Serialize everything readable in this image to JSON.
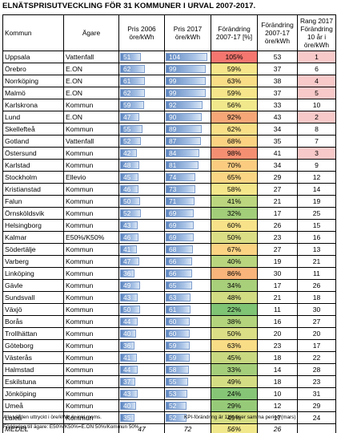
{
  "title": "ELNÄTSPRISUTVECKLING FÖR 31 KOMMUNER I URVAL 2007-2017.",
  "headers": {
    "kommun": "Kommun",
    "agare": "Ägare",
    "pris2006": "Pris 2006 öre/kWh",
    "pris2017": "Pris 2017 öre/kWh",
    "forandring_pct": "Förändring 2007-17 [%]",
    "forandring_ore": "Förändring 2007-17 öre/kWh",
    "rang": "Rang 2017 Förändring 10 år i öre/kWh"
  },
  "scale_max": 104,
  "rows": [
    {
      "kommun": "Uppsala",
      "agare": "Vattenfall",
      "p2006": 51,
      "p2017": 104,
      "pct": "105%",
      "ore": 53,
      "rank": 1,
      "pct_color": "#f4766f",
      "rank_color": "#f8c9c9"
    },
    {
      "kommun": "Örebro",
      "agare": "E.ON",
      "p2006": 62,
      "p2017": 99,
      "pct": "59%",
      "ore": 37,
      "rank": 6,
      "pct_color": "#f6e58a",
      "rank_color": "#ffffff"
    },
    {
      "kommun": "Norrköping",
      "agare": "E.ON",
      "p2006": 61,
      "p2017": 99,
      "pct": "63%",
      "ore": 38,
      "rank": 4,
      "pct_color": "#f9dc86",
      "rank_color": "#f8c9c9"
    },
    {
      "kommun": "Malmö",
      "agare": "E.ON",
      "p2006": 62,
      "p2017": 99,
      "pct": "59%",
      "ore": 37,
      "rank": 5,
      "pct_color": "#f6e58a",
      "rank_color": "#f8c9c9"
    },
    {
      "kommun": "Karlskrona",
      "agare": "Kommun",
      "p2006": 59,
      "p2017": 92,
      "pct": "56%",
      "ore": 33,
      "rank": 10,
      "pct_color": "#f1e88c",
      "rank_color": "#ffffff"
    },
    {
      "kommun": "Lund",
      "agare": "E.ON",
      "p2006": 47,
      "p2017": 90,
      "pct": "92%",
      "ore": 43,
      "rank": 2,
      "pct_color": "#f7a777",
      "rank_color": "#f8c9c9"
    },
    {
      "kommun": "Skellefteå",
      "agare": "Kommun",
      "p2006": 55,
      "p2017": 89,
      "pct": "62%",
      "ore": 34,
      "rank": 8,
      "pct_color": "#f8df88",
      "rank_color": "#ffffff"
    },
    {
      "kommun": "Gotland",
      "agare": "Vattenfall",
      "p2006": 52,
      "p2017": 87,
      "pct": "68%",
      "ore": 35,
      "rank": 7,
      "pct_color": "#fbd282",
      "rank_color": "#ffffff"
    },
    {
      "kommun": "Östersund",
      "agare": "Kommun",
      "p2006": 42,
      "p2017": 84,
      "pct": "98%",
      "ore": 41,
      "rank": 3,
      "pct_color": "#f58f72",
      "rank_color": "#f8c9c9"
    },
    {
      "kommun": "Karlstad",
      "agare": "Kommun",
      "p2006": 48,
      "p2017": 81,
      "pct": "70%",
      "ore": 34,
      "rank": 9,
      "pct_color": "#fbcc80",
      "rank_color": "#ffffff"
    },
    {
      "kommun": "Stockholm",
      "agare": "Ellevio",
      "p2006": 45,
      "p2017": 74,
      "pct": "65%",
      "ore": 29,
      "rank": 12,
      "pct_color": "#fad684",
      "rank_color": "#ffffff"
    },
    {
      "kommun": "Kristianstad",
      "agare": "Kommun",
      "p2006": 46,
      "p2017": 73,
      "pct": "58%",
      "ore": 27,
      "rank": 14,
      "pct_color": "#f4e68b",
      "rank_color": "#ffffff"
    },
    {
      "kommun": "Falun",
      "agare": "Kommun",
      "p2006": 50,
      "p2017": 71,
      "pct": "41%",
      "ore": 21,
      "rank": 19,
      "pct_color": "#bbd67e",
      "rank_color": "#ffffff"
    },
    {
      "kommun": "Örnsköldsvik",
      "agare": "Kommun",
      "p2006": 52,
      "p2017": 69,
      "pct": "32%",
      "ore": 17,
      "rank": 25,
      "pct_color": "#a2cd79",
      "rank_color": "#ffffff"
    },
    {
      "kommun": "Helsingborg",
      "agare": "Kommun",
      "p2006": 43,
      "p2017": 69,
      "pct": "60%",
      "ore": 26,
      "rank": 15,
      "pct_color": "#f7e289",
      "rank_color": "#ffffff"
    },
    {
      "kommun": "Kalmar",
      "agare": "E50%/K50%",
      "p2006": 46,
      "p2017": 69,
      "pct": "50%",
      "ore": 23,
      "rank": 16,
      "pct_color": "#dcde86",
      "rank_color": "#ffffff"
    },
    {
      "kommun": "Södertälje",
      "agare": "Kommun",
      "p2006": 41,
      "p2017": 68,
      "pct": "67%",
      "ore": 27,
      "rank": 13,
      "pct_color": "#fbd383",
      "rank_color": "#ffffff"
    },
    {
      "kommun": "Varberg",
      "agare": "Kommun",
      "p2006": 47,
      "p2017": 66,
      "pct": "40%",
      "ore": 19,
      "rank": 21,
      "pct_color": "#b9d57e",
      "rank_color": "#ffffff"
    },
    {
      "kommun": "Linköping",
      "agare": "Kommun",
      "p2006": 36,
      "p2017": 66,
      "pct": "86%",
      "ore": 30,
      "rank": 11,
      "pct_color": "#f8b47a",
      "rank_color": "#ffffff"
    },
    {
      "kommun": "Gävle",
      "agare": "Kommun",
      "p2006": 49,
      "p2017": 65,
      "pct": "34%",
      "ore": 17,
      "rank": 26,
      "pct_color": "#a8cf7a",
      "rank_color": "#ffffff"
    },
    {
      "kommun": "Sundsvall",
      "agare": "Kommun",
      "p2006": 43,
      "p2017": 63,
      "pct": "48%",
      "ore": 21,
      "rank": 18,
      "pct_color": "#d2dc83",
      "rank_color": "#ffffff"
    },
    {
      "kommun": "Växjö",
      "agare": "Kommun",
      "p2006": 50,
      "p2017": 61,
      "pct": "22%",
      "ore": 11,
      "rank": 30,
      "pct_color": "#7fc375",
      "rank_color": "#ffffff"
    },
    {
      "kommun": "Borås",
      "agare": "Kommun",
      "p2006": 44,
      "p2017": 60,
      "pct": "38%",
      "ore": 16,
      "rank": 27,
      "pct_color": "#b3d47c",
      "rank_color": "#ffffff"
    },
    {
      "kommun": "Trollhättan",
      "agare": "Kommun",
      "p2006": 40,
      "p2017": 60,
      "pct": "50%",
      "ore": 20,
      "rank": 20,
      "pct_color": "#dcde86",
      "rank_color": "#ffffff"
    },
    {
      "kommun": "Göteborg",
      "agare": "Kommun",
      "p2006": 36,
      "p2017": 59,
      "pct": "63%",
      "ore": 23,
      "rank": 17,
      "pct_color": "#f9dc86",
      "rank_color": "#ffffff"
    },
    {
      "kommun": "Västerås",
      "agare": "Kommun",
      "p2006": 41,
      "p2017": 59,
      "pct": "45%",
      "ore": 18,
      "rank": 22,
      "pct_color": "#c8d981",
      "rank_color": "#ffffff"
    },
    {
      "kommun": "Halmstad",
      "agare": "Kommun",
      "p2006": 44,
      "p2017": 58,
      "pct": "33%",
      "ore": 14,
      "rank": 28,
      "pct_color": "#a5ce7a",
      "rank_color": "#ffffff"
    },
    {
      "kommun": "Eskilstuna",
      "agare": "Kommun",
      "p2006": 37,
      "p2017": 55,
      "pct": "49%",
      "ore": 18,
      "rank": 23,
      "pct_color": "#d5dd84",
      "rank_color": "#ffffff"
    },
    {
      "kommun": "Jönköping",
      "agare": "Kommun",
      "p2006": 43,
      "p2017": 53,
      "pct": "24%",
      "ore": 10,
      "rank": 31,
      "pct_color": "#86c576",
      "rank_color": "#ffffff"
    },
    {
      "kommun": "Umeå",
      "agare": "Kommun",
      "p2006": 40,
      "p2017": 52,
      "pct": "29%",
      "ore": 12,
      "rank": 29,
      "pct_color": "#96ca78",
      "rank_color": "#ffffff"
    },
    {
      "kommun": "Luleå",
      "agare": "Kommun",
      "p2006": 35,
      "p2017": 52,
      "pct": "49%",
      "ore": 17,
      "rank": 24,
      "pct_color": "#d5dd84",
      "rank_color": "#ffffff"
    }
  ],
  "mean": {
    "label": "MEDEL",
    "p2006": "47",
    "p2017": "72",
    "pct": "56%",
    "ore": "26",
    "pct_color": "#f1e88c"
  },
  "notes": {
    "left": "Alla värden uttryckt i öre/kWh är inkl moms.",
    "right": "KPI-förändring är 11% över samma period (mars)",
    "bottom": "Förklaring till ägare: E50%/K50%=E.ON 50%/Kommun 50%"
  }
}
